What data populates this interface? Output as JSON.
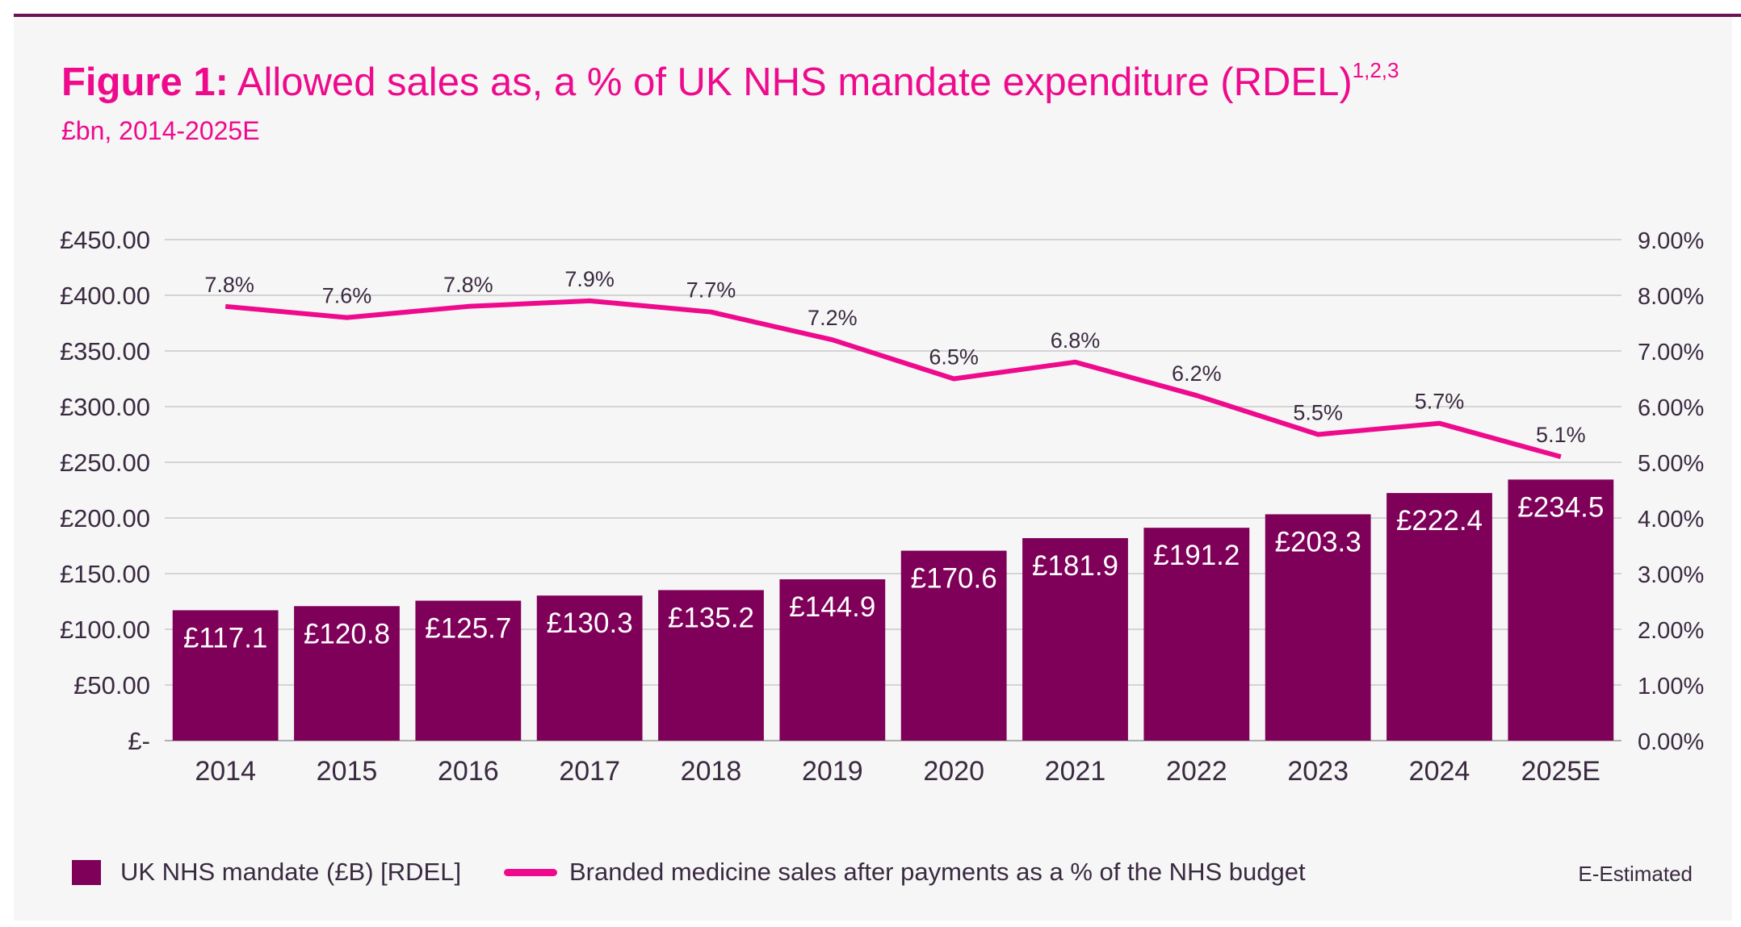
{
  "title_bold": "Figure 1:",
  "title_rest": "Allowed sales as, a % of UK NHS mandate expenditure (RDEL)",
  "title_sup": "1,2,3",
  "subtitle": "£bn, 2014-2025E",
  "colors": {
    "bar": "#7f0059",
    "line": "#ee0a8c",
    "title": "#ee0a8c",
    "grid": "#c8c8c8"
  },
  "chart_data": {
    "type": "bar+line",
    "categories": [
      "2014",
      "2015",
      "2016",
      "2017",
      "2018",
      "2019",
      "2020",
      "2021",
      "2022",
      "2023",
      "2024",
      "2025E"
    ],
    "series": [
      {
        "name": "UK NHS mandate (£B) [RDEL]",
        "type": "bar",
        "axis": "left",
        "values": [
          117.1,
          120.8,
          125.7,
          130.3,
          135.2,
          144.9,
          170.6,
          181.9,
          191.2,
          203.3,
          222.4,
          234.5
        ],
        "labels": [
          "£117.1",
          "£120.8",
          "£125.7",
          "£130.3",
          "£135.2",
          "£144.9",
          "£170.6",
          "£181.9",
          "£191.2",
          "£203.3",
          "£222.4",
          "£234.5"
        ]
      },
      {
        "name": "Branded medicine sales after payments as a % of the NHS budget",
        "type": "line",
        "axis": "right",
        "values": [
          7.8,
          7.6,
          7.8,
          7.9,
          7.7,
          7.2,
          6.5,
          6.8,
          6.2,
          5.5,
          5.7,
          5.1
        ],
        "labels": [
          "7.8%",
          "7.6%",
          "7.8%",
          "7.9%",
          "7.7%",
          "7.2%",
          "6.5%",
          "6.8%",
          "6.2%",
          "5.5%",
          "5.7%",
          "5.1%"
        ]
      }
    ],
    "left_axis": {
      "ylim": [
        0,
        450
      ],
      "ticks": [
        "£-",
        "£50.00",
        "£100.00",
        "£150.00",
        "£200.00",
        "£250.00",
        "£300.00",
        "£350.00",
        "£400.00",
        "£450.00"
      ]
    },
    "right_axis": {
      "ylim": [
        0,
        9
      ],
      "ticks": [
        "0.00%",
        "1.00%",
        "2.00%",
        "3.00%",
        "4.00%",
        "5.00%",
        "6.00%",
        "7.00%",
        "8.00%",
        "9.00%"
      ]
    },
    "grid": true,
    "legend_position": "bottom",
    "note": "E-Estimated"
  }
}
